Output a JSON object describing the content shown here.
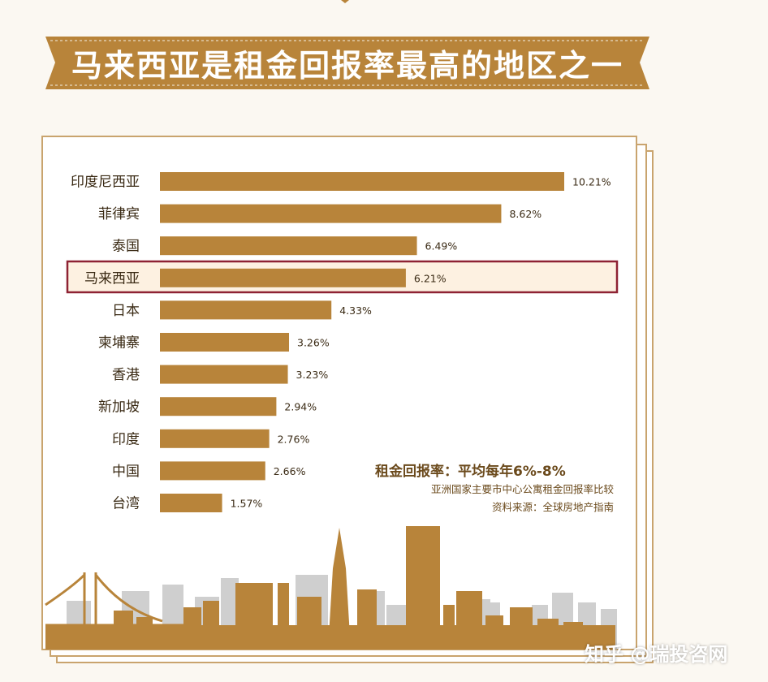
{
  "banner": {
    "title": "马来西亚是租金回报率最高的地区之一"
  },
  "chart_data": {
    "type": "bar",
    "orientation": "horizontal",
    "categories": [
      "印度尼西亚",
      "菲律宾",
      "泰国",
      "马来西亚",
      "日本",
      "柬埔寨",
      "香港",
      "新加坡",
      "印度",
      "中国",
      "台湾"
    ],
    "values": [
      10.21,
      8.62,
      6.49,
      6.21,
      4.33,
      3.26,
      3.23,
      2.94,
      2.76,
      2.66,
      1.57
    ],
    "value_labels": [
      "10.21%",
      "8.62%",
      "6.49%",
      "6.21%",
      "4.33%",
      "3.26%",
      "3.23%",
      "2.94%",
      "2.76%",
      "2.66%",
      "1.57%"
    ],
    "highlighted_category": "马来西亚",
    "xlim": [
      0,
      10.21
    ],
    "grid": false,
    "legend": "none",
    "colors": {
      "bar": "#b8843a",
      "highlight_border": "#8e2233",
      "highlight_fill": "#fdf1e1"
    }
  },
  "notes": {
    "title": "租金回报率：平均每年6%-8%",
    "subtitle": "亚洲国家主要市中心公寓租金回报率比较",
    "source": "资料来源：全球房地产指南"
  },
  "watermark": "知乎 @瑞投咨网",
  "colors": {
    "banner": "#b8843a",
    "frame_border": "#c9a46e",
    "skyline_front": "#b8843a",
    "skyline_back": "#cfcfcf"
  }
}
